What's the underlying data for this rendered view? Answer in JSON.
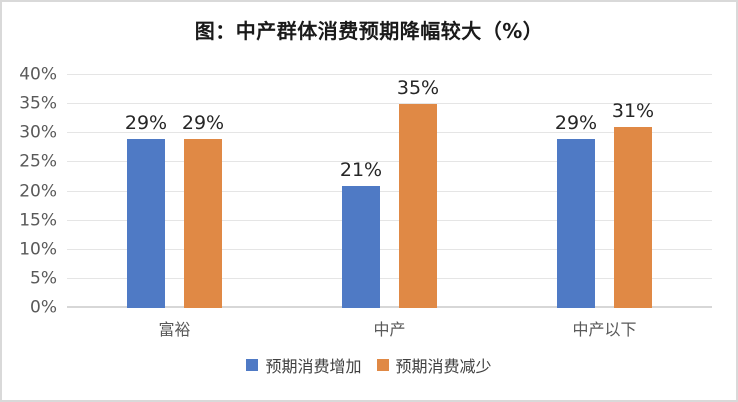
{
  "title": "图：中产群体消费预期降幅较大（%）",
  "chart_data": {
    "type": "bar",
    "title": "图：中产群体消费预期降幅较大（%）",
    "categories": [
      "富裕",
      "中产",
      "中产以下"
    ],
    "series": [
      {
        "name": "预期消费增加",
        "color": "#4F7AC5",
        "values": [
          29,
          21,
          29
        ],
        "labels": [
          "29%",
          "21%",
          "29%"
        ]
      },
      {
        "name": "预期消费减少",
        "color": "#E08945",
        "values": [
          29,
          35,
          31
        ],
        "labels": [
          "29%",
          "35%",
          "31%"
        ]
      }
    ],
    "xlabel": "",
    "ylabel": "",
    "ylim": [
      0,
      40
    ],
    "ytick_labels": [
      "0%",
      "5%",
      "10%",
      "15%",
      "20%",
      "25%",
      "30%",
      "35%",
      "40%"
    ],
    "grid": true,
    "legend_position": "bottom"
  },
  "colors": {
    "series_increase": "#4F7AC5",
    "series_decrease": "#E08945",
    "gridline": "#E5E5E5",
    "axis_line": "#D7D7D7",
    "frame_border": "#D9D9D9",
    "tick_text": "#595959",
    "data_label_text": "#262626",
    "title_text": "#1A1A1A"
  }
}
